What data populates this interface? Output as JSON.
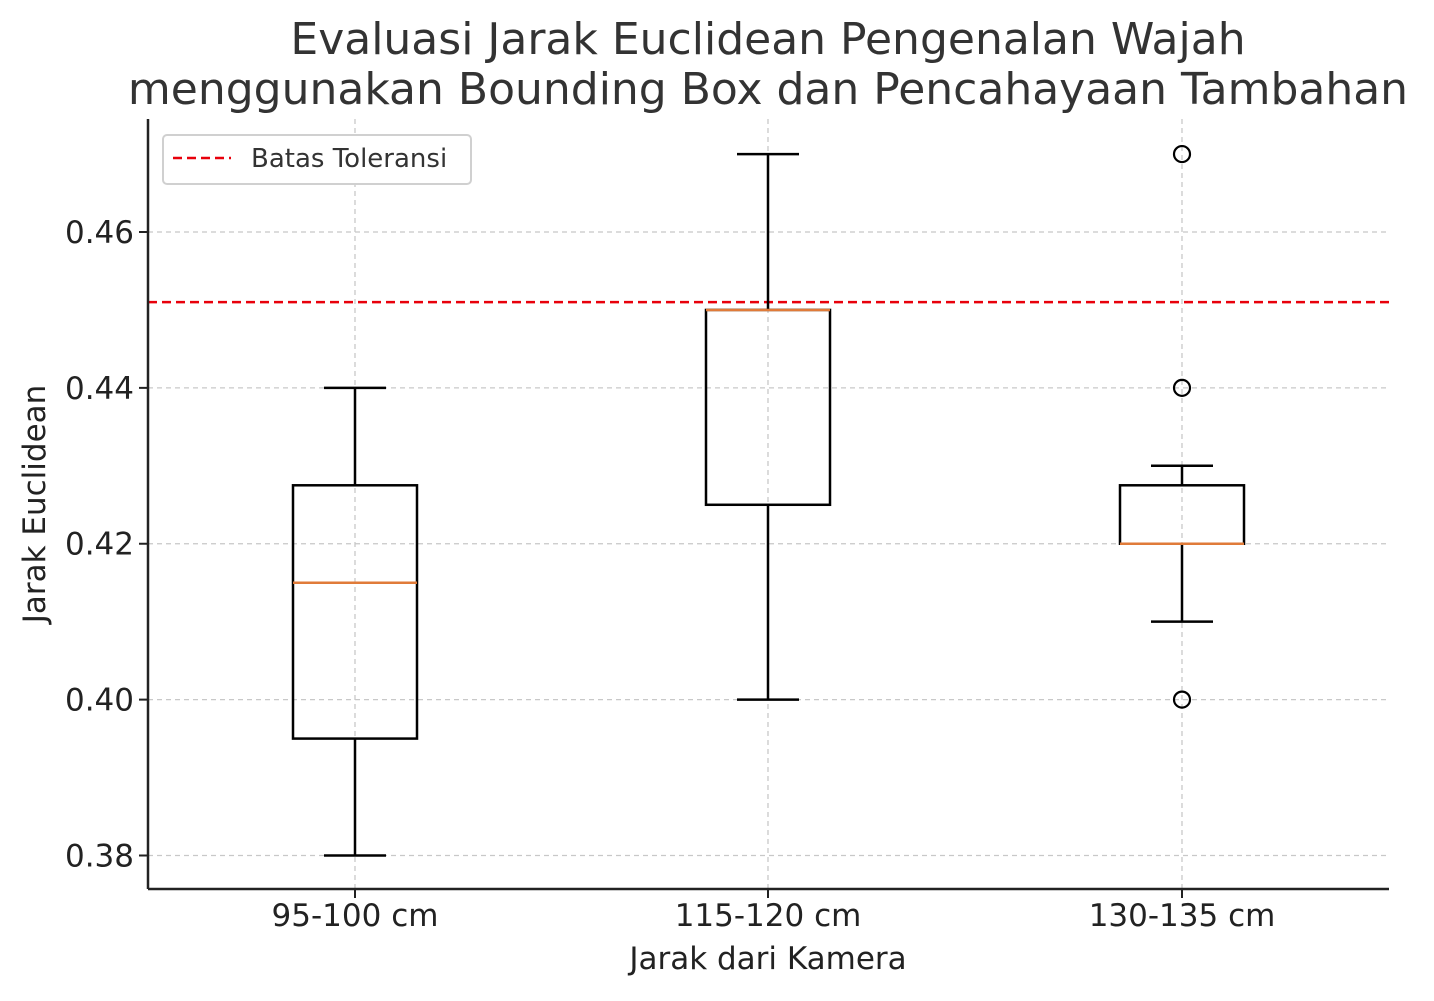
{
  "chart_data": {
    "type": "box",
    "title": "Evaluasi Jarak Euclidean Pengenalan Wajah\nmenggunakan Bounding Box dan Pencahayaan Tambahan",
    "title_lines": [
      "Evaluasi Jarak Euclidean Pengenalan Wajah",
      "menggunakan Bounding Box dan Pencahayaan Tambahan"
    ],
    "xlabel": "Jarak dari Kamera",
    "ylabel": "Jarak Euclidean",
    "categories": [
      "95-100 cm",
      "115-120 cm",
      "130-135 cm"
    ],
    "boxes": [
      {
        "category": "95-100 cm",
        "whisker_low": 0.38,
        "q1": 0.395,
        "median": 0.415,
        "q3": 0.4275,
        "whisker_high": 0.44,
        "outliers": []
      },
      {
        "category": "115-120 cm",
        "whisker_low": 0.4,
        "q1": 0.425,
        "median": 0.45,
        "q3": 0.45,
        "whisker_high": 0.47,
        "outliers": []
      },
      {
        "category": "130-135 cm",
        "whisker_low": 0.41,
        "q1": 0.42,
        "median": 0.42,
        "q3": 0.4275,
        "whisker_high": 0.43,
        "outliers": [
          0.4,
          0.44,
          0.47
        ]
      }
    ],
    "reference_line": {
      "label": "Batas Toleransi",
      "value": 0.451,
      "style": "dashed",
      "color": "#e8000b"
    },
    "ylim": [
      0.3757,
      0.4745
    ],
    "yticks": [
      0.38,
      0.4,
      0.42,
      0.44,
      0.46
    ],
    "ytick_labels": [
      "0.38",
      "0.40",
      "0.42",
      "0.44",
      "0.46"
    ],
    "grid": true,
    "legend_position": "top-left",
    "colors": {
      "box": "#000000",
      "median": "#e07b39",
      "grid": "#c8c8c8",
      "text": "#333333",
      "axis": "#222222",
      "reference": "#e8000b"
    }
  }
}
